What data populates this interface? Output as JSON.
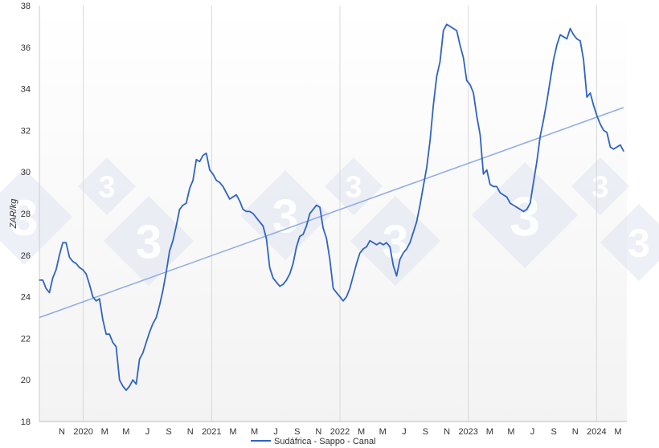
{
  "chart_data": {
    "type": "line",
    "ylabel": "ZAR/kg",
    "ylim": [
      18,
      38
    ],
    "yticks": [
      18,
      20,
      22,
      24,
      26,
      28,
      30,
      32,
      34,
      36,
      38
    ],
    "xticks": [
      "N",
      "2020",
      "M",
      "M",
      "J",
      "S",
      "N",
      "2021",
      "M",
      "M",
      "J",
      "S",
      "N",
      "2022",
      "M",
      "M",
      "J",
      "S",
      "N",
      "2023",
      "M",
      "M",
      "J",
      "S",
      "N",
      "2024",
      "M"
    ],
    "grid": "vertical at year starts",
    "legend": "bottom-center",
    "colors": {
      "series": "#2f63c4",
      "trend": "#8eaae8",
      "grid": "#d8d8d8",
      "watermark": "#dfe4ef"
    },
    "watermark": "3",
    "series": [
      {
        "name": "Sudáfrica - Sappo - Canal",
        "values": [
          24.8,
          24.8,
          24.4,
          24.2,
          24.9,
          25.3,
          26.0,
          26.6,
          26.6,
          25.9,
          25.7,
          25.6,
          25.4,
          25.3,
          25.1,
          24.6,
          24.0,
          23.8,
          23.9,
          22.9,
          22.2,
          22.2,
          21.8,
          21.6,
          20.0,
          19.7,
          19.5,
          19.7,
          20.0,
          19.8,
          21.0,
          21.3,
          21.8,
          22.3,
          22.7,
          23.0,
          23.6,
          24.3,
          25.2,
          26.2,
          26.7,
          27.4,
          28.2,
          28.4,
          28.5,
          29.2,
          29.6,
          30.6,
          30.5,
          30.8,
          30.9,
          30.1,
          29.9,
          29.6,
          29.5,
          29.3,
          29.0,
          28.7,
          28.8,
          28.9,
          28.6,
          28.2,
          28.1,
          28.1,
          28.0,
          27.8,
          27.6,
          27.4,
          26.8,
          25.4,
          24.9,
          24.7,
          24.5,
          24.6,
          24.8,
          25.1,
          25.6,
          26.4,
          26.9,
          27.0,
          27.4,
          28.0,
          28.2,
          28.4,
          28.3,
          27.3,
          26.8,
          25.8,
          24.4,
          24.2,
          24.0,
          23.8,
          24.0,
          24.4,
          25.0,
          25.6,
          26.1,
          26.3,
          26.4,
          26.7,
          26.6,
          26.5,
          26.6,
          26.5,
          26.6,
          26.4,
          25.5,
          25.0,
          25.8,
          26.1,
          26.3,
          26.6,
          27.1,
          27.6,
          28.4,
          29.3,
          30.2,
          31.5,
          33.2,
          34.6,
          35.3,
          36.8,
          37.1,
          37.0,
          36.9,
          36.8,
          36.1,
          35.5,
          34.4,
          34.2,
          33.8,
          32.7,
          31.8,
          29.9,
          30.1,
          29.4,
          29.3,
          29.3,
          29.0,
          28.9,
          28.8,
          28.5,
          28.4,
          28.3,
          28.2,
          28.1,
          28.2,
          28.5,
          29.5,
          30.5,
          31.7,
          32.5,
          33.4,
          34.4,
          35.4,
          36.1,
          36.6,
          36.5,
          36.4,
          36.9,
          36.6,
          36.4,
          36.3,
          35.4,
          33.6,
          33.8,
          33.2,
          32.7,
          32.3,
          32.0,
          31.9,
          31.2,
          31.1,
          31.2,
          31.3,
          31.0
        ]
      }
    ],
    "trendline": [
      23.0,
      33.1
    ]
  }
}
